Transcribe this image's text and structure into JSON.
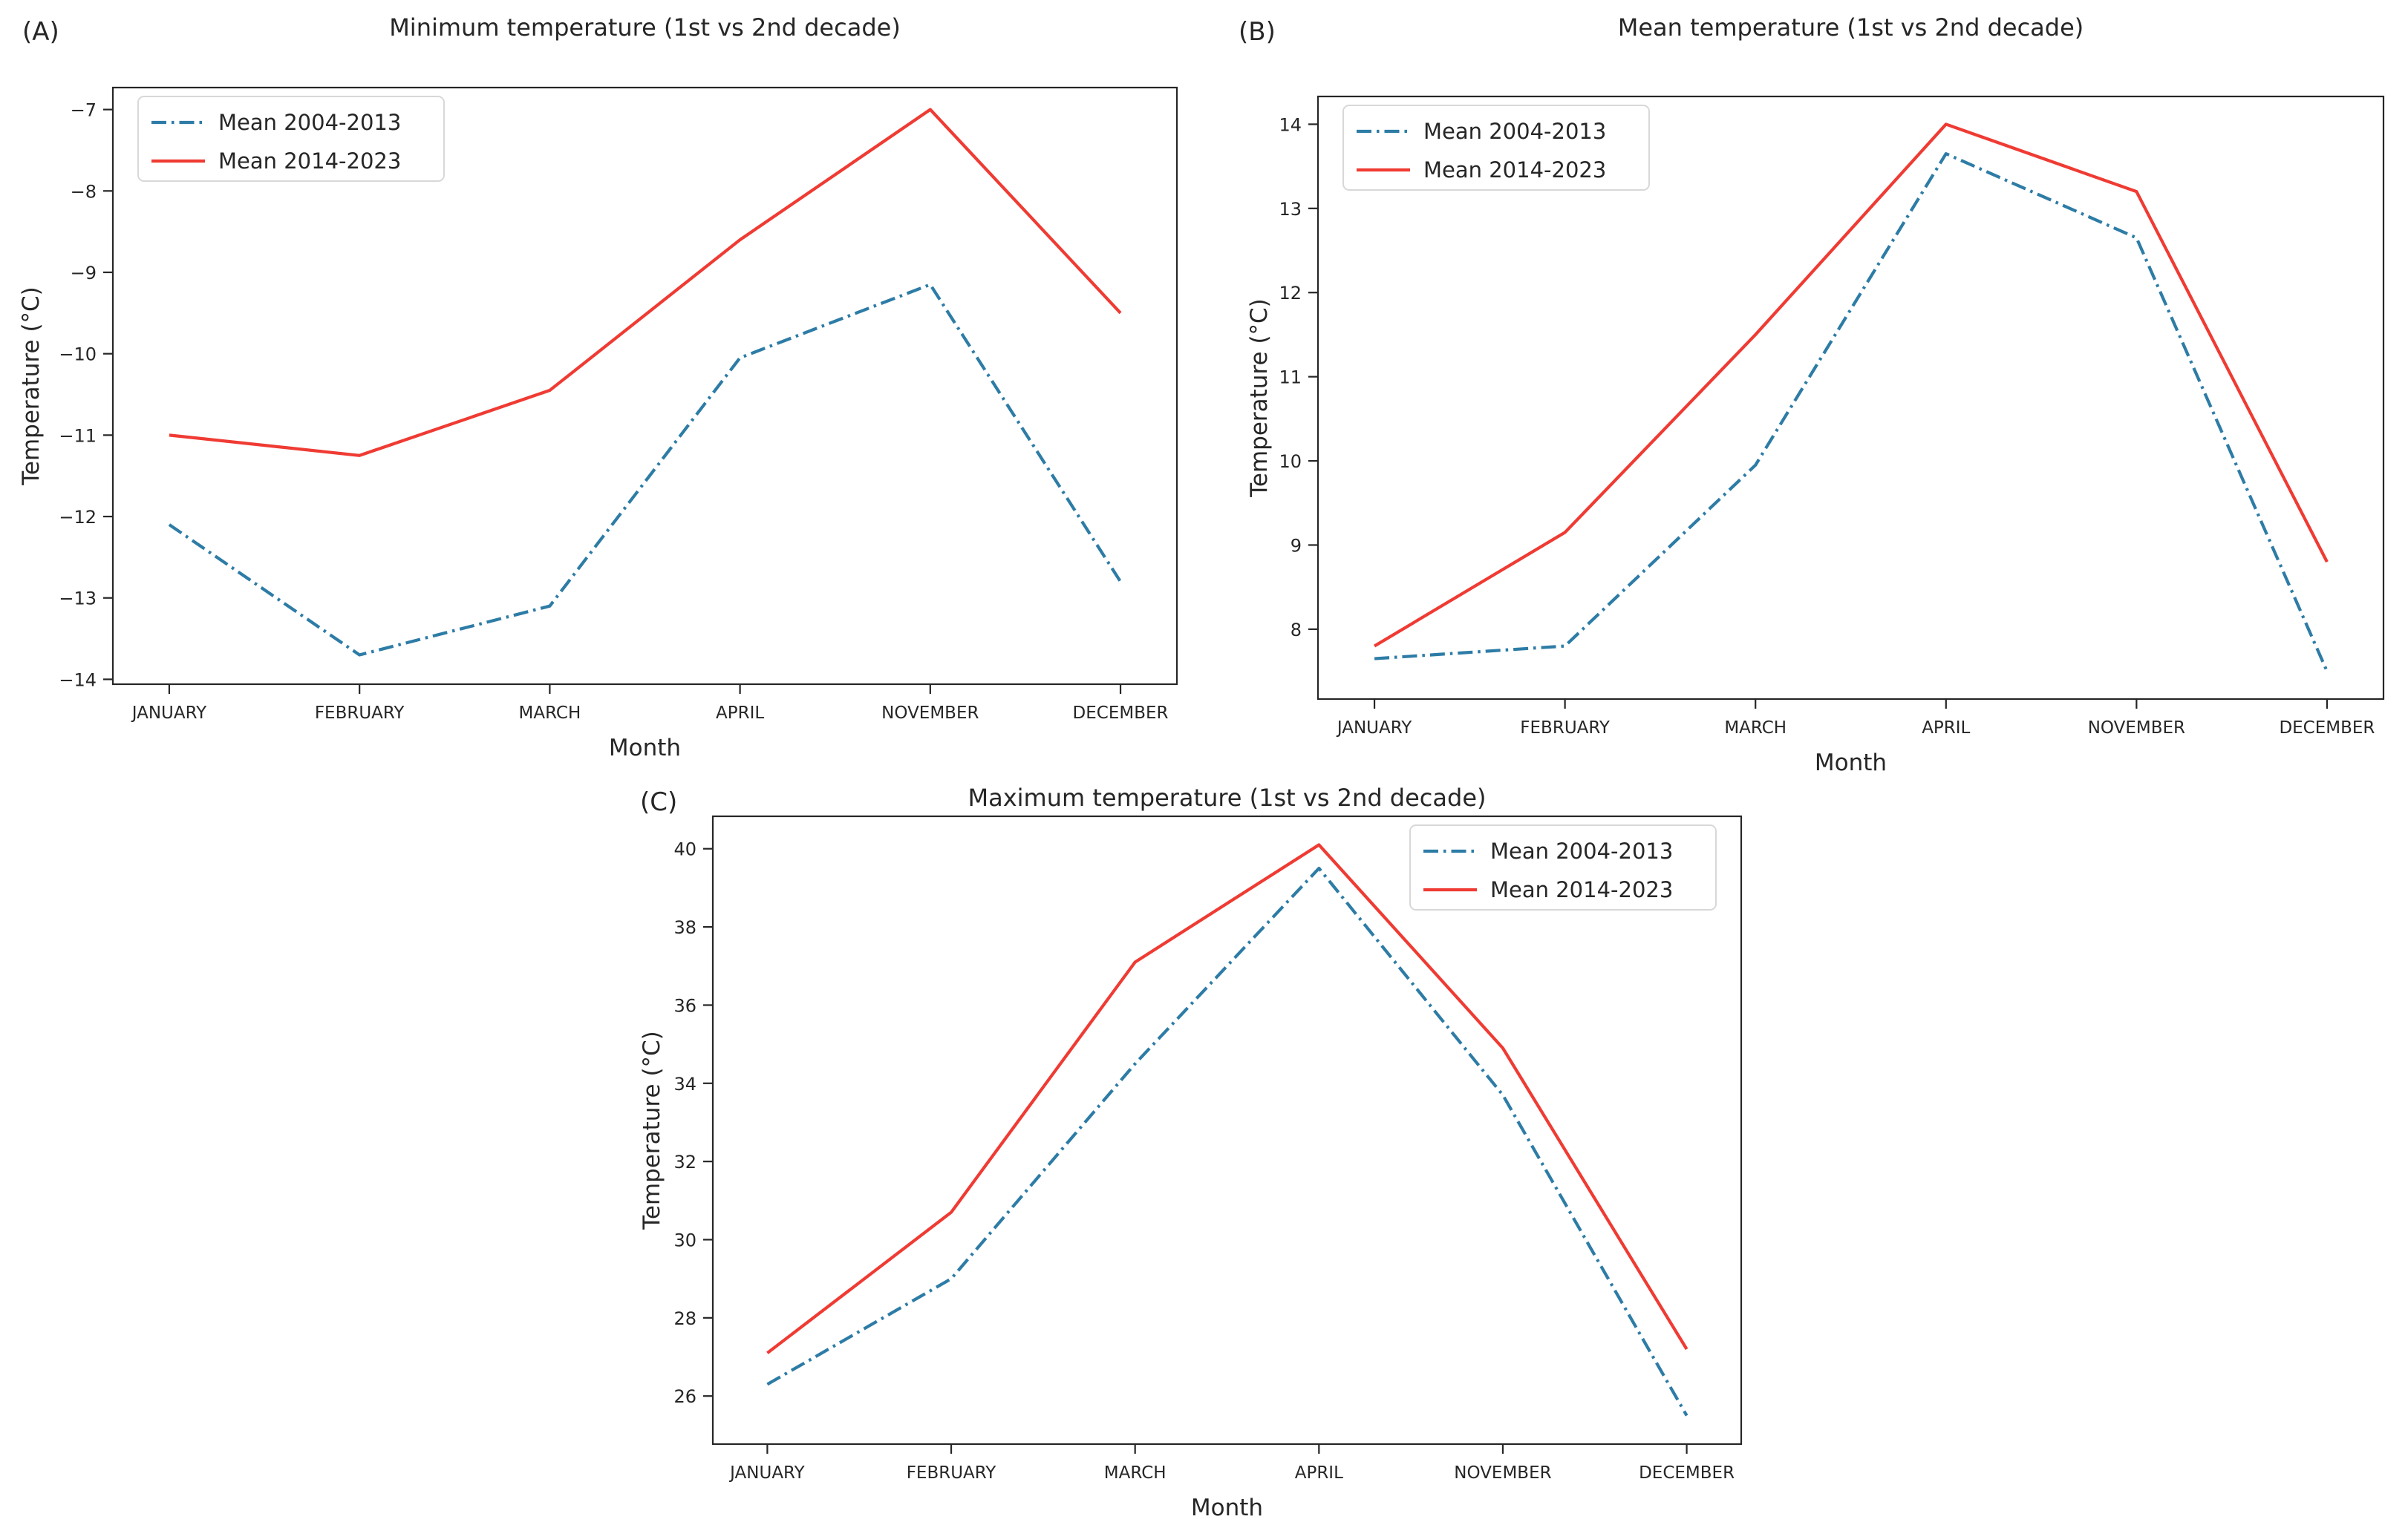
{
  "figure": {
    "background": "#ffffff"
  },
  "colors": {
    "axis": "#262626",
    "text": "#262626",
    "legend_border": "#d8d8d8",
    "series_2004_2013": "#2d7ca6",
    "series_2014_2023": "#ef3b33"
  },
  "chart_data": [
    {
      "type": "line",
      "panel_label": "(A)",
      "title": "Minimum temperature (1st vs 2nd decade)",
      "xlabel": "Month",
      "ylabel": "Temperature (°C)",
      "categories": [
        "JANUARY",
        "FEBRUARY",
        "MARCH",
        "APRIL",
        "NOVEMBER",
        "DECEMBER"
      ],
      "series": [
        {
          "name": "Mean 2004-2013",
          "line_style": "dashdot",
          "color": "#2d7ca6",
          "values": [
            -12.1,
            -13.7,
            -13.1,
            -10.05,
            -9.15,
            -12.8
          ]
        },
        {
          "name": "Mean 2014-2023",
          "line_style": "solid",
          "color": "#ef3b33",
          "values": [
            -11.0,
            -11.25,
            -10.45,
            -8.6,
            -7.0,
            -9.5
          ]
        }
      ],
      "ylim": [
        -14.06,
        -6.73
      ],
      "yticks": [
        -14,
        -13,
        -12,
        -11,
        -10,
        -9,
        -8,
        -7
      ],
      "ytick_labels": [
        "−14",
        "−13",
        "−12",
        "−11",
        "−10",
        "−9",
        "−8",
        "−7"
      ],
      "grid": false,
      "legend_position": "upper-left"
    },
    {
      "type": "line",
      "panel_label": "(B)",
      "title": "Mean temperature (1st vs 2nd decade)",
      "xlabel": "Month",
      "ylabel": "Temperature (°C)",
      "categories": [
        "JANUARY",
        "FEBRUARY",
        "MARCH",
        "APRIL",
        "NOVEMBER",
        "DECEMBER"
      ],
      "series": [
        {
          "name": "Mean 2004-2013",
          "line_style": "dashdot",
          "color": "#2d7ca6",
          "values": [
            7.65,
            7.8,
            9.95,
            13.65,
            12.65,
            7.5
          ]
        },
        {
          "name": "Mean 2014-2023",
          "line_style": "solid",
          "color": "#ef3b33",
          "values": [
            7.8,
            9.15,
            11.5,
            14.0,
            13.2,
            8.8
          ]
        }
      ],
      "ylim": [
        7.17,
        14.33
      ],
      "yticks": [
        8,
        9,
        10,
        11,
        12,
        13,
        14
      ],
      "ytick_labels": [
        "8",
        "9",
        "10",
        "11",
        "12",
        "13",
        "14"
      ],
      "grid": false,
      "legend_position": "upper-left"
    },
    {
      "type": "line",
      "panel_label": "(C)",
      "title": "Maximum temperature (1st vs 2nd decade)",
      "xlabel": "Month",
      "ylabel": "Temperature (°C)",
      "categories": [
        "JANUARY",
        "FEBRUARY",
        "MARCH",
        "APRIL",
        "NOVEMBER",
        "DECEMBER"
      ],
      "series": [
        {
          "name": "Mean 2004-2013",
          "line_style": "dashdot",
          "color": "#2d7ca6",
          "values": [
            26.3,
            29.0,
            34.5,
            39.5,
            33.7,
            25.5
          ]
        },
        {
          "name": "Mean 2014-2023",
          "line_style": "solid",
          "color": "#ef3b33",
          "values": [
            27.1,
            30.7,
            37.1,
            40.1,
            34.9,
            27.2
          ]
        }
      ],
      "ylim": [
        24.77,
        40.83
      ],
      "yticks": [
        26,
        28,
        30,
        32,
        34,
        36,
        38,
        40
      ],
      "ytick_labels": [
        "26",
        "28",
        "30",
        "32",
        "34",
        "36",
        "38",
        "40"
      ],
      "grid": false,
      "legend_position": "upper-right"
    }
  ]
}
